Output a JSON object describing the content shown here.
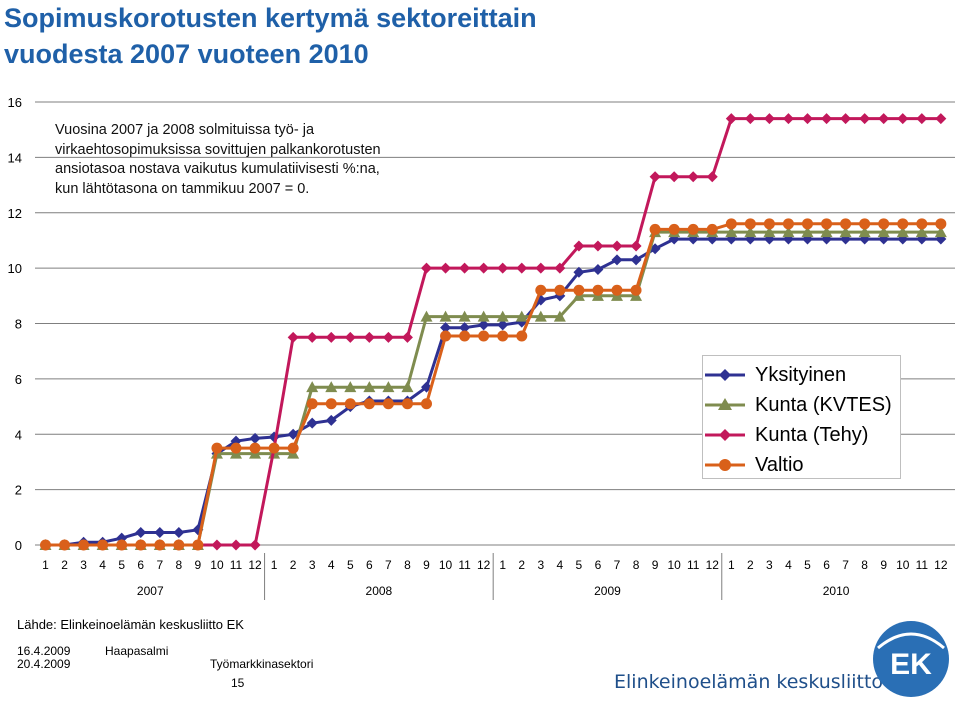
{
  "title_line1": "Sopimuskorotusten kertymä sektoreittain",
  "title_line2": "vuodesta 2007 vuoteen 2010",
  "annotation": [
    "Vuosina 2007 ja 2008 solmituissa työ- ja",
    "virkaehtosopimuksissa sovittujen palkankorotusten",
    "ansiotasoa nostava vaikutus kumulatiivisesti %:na,",
    "kun lähtötasona on tammikuu 2007 = 0."
  ],
  "source": "Lähde: Elinkeinoelämän keskusliitto EK",
  "footer": {
    "date1": "16.4.2009",
    "date2": "20.4.2009",
    "author": "Haapasalmi",
    "unit": "Työmarkkinasektori",
    "page": "15"
  },
  "org_name": "Elinkeinoelämän keskusliitto",
  "logo_text": "EK",
  "colors": {
    "title": "#1f60a8",
    "yksityinen": "#2e3192",
    "kunta_kvtes": "#7f8c4f",
    "kunta_tehy": "#c2185b",
    "valtio": "#d9601a",
    "logo": "#2a6fb5"
  },
  "chart_data": {
    "type": "line",
    "ylim": [
      0,
      16
    ],
    "yticks": [
      0,
      2,
      4,
      6,
      8,
      10,
      12,
      14,
      16
    ],
    "x_month_labels": [
      "1",
      "2",
      "3",
      "4",
      "5",
      "6",
      "7",
      "8",
      "9",
      "10",
      "11",
      "12",
      "1",
      "2",
      "3",
      "4",
      "5",
      "6",
      "7",
      "8",
      "9",
      "10",
      "11",
      "12",
      "1",
      "2",
      "3",
      "4",
      "5",
      "6",
      "7",
      "8",
      "9",
      "10",
      "11",
      "12",
      "1",
      "2",
      "3",
      "4",
      "5",
      "6",
      "7",
      "8",
      "9",
      "10",
      "11",
      "12"
    ],
    "year_labels": [
      "2007",
      "2008",
      "2009",
      "2010"
    ],
    "grid": "horizontal",
    "legend_position": "right",
    "series": [
      {
        "name": "Yksityinen",
        "marker": "diamond",
        "values": [
          0,
          0,
          0.1,
          0.1,
          0.25,
          0.45,
          0.45,
          0.45,
          0.55,
          3.3,
          3.75,
          3.85,
          3.9,
          4.0,
          4.4,
          4.5,
          5.0,
          5.2,
          5.2,
          5.2,
          5.7,
          7.85,
          7.85,
          7.95,
          7.95,
          8.05,
          8.85,
          9.0,
          9.85,
          9.95,
          10.3,
          10.3,
          10.7,
          11.05,
          11.05,
          11.05,
          11.05,
          11.05,
          11.05,
          11.05,
          11.05,
          11.05,
          11.05,
          11.05,
          11.05,
          11.05,
          11.05,
          11.05
        ]
      },
      {
        "name": "Kunta (KVTES)",
        "marker": "triangle",
        "values": [
          0,
          0,
          0,
          0,
          0,
          0,
          0,
          0,
          0,
          3.3,
          3.3,
          3.3,
          3.3,
          3.3,
          5.7,
          5.7,
          5.7,
          5.7,
          5.7,
          5.7,
          8.25,
          8.25,
          8.25,
          8.25,
          8.25,
          8.25,
          8.25,
          8.25,
          9.0,
          9.0,
          9.0,
          9.0,
          11.3,
          11.3,
          11.3,
          11.3,
          11.3,
          11.3,
          11.3,
          11.3,
          11.3,
          11.3,
          11.3,
          11.3,
          11.3,
          11.3,
          11.3,
          11.3
        ]
      },
      {
        "name": "Kunta (Tehy)",
        "marker": "diamond",
        "values": [
          0,
          0,
          0,
          0,
          0,
          0,
          0,
          0,
          0,
          0,
          0,
          0,
          3.5,
          7.5,
          7.5,
          7.5,
          7.5,
          7.5,
          7.5,
          7.5,
          10.0,
          10.0,
          10.0,
          10.0,
          10.0,
          10.0,
          10.0,
          10.0,
          10.8,
          10.8,
          10.8,
          10.8,
          13.3,
          13.3,
          13.3,
          13.3,
          15.4,
          15.4,
          15.4,
          15.4,
          15.4,
          15.4,
          15.4,
          15.4,
          15.4,
          15.4,
          15.4,
          15.4
        ]
      },
      {
        "name": "Valtio",
        "marker": "circle",
        "values": [
          0,
          0,
          0,
          0,
          0,
          0,
          0,
          0,
          0,
          3.5,
          3.5,
          3.5,
          3.5,
          3.5,
          5.1,
          5.1,
          5.1,
          5.1,
          5.1,
          5.1,
          5.1,
          7.55,
          7.55,
          7.55,
          7.55,
          7.55,
          9.2,
          9.2,
          9.2,
          9.2,
          9.2,
          9.2,
          11.4,
          11.4,
          11.4,
          11.4,
          11.6,
          11.6,
          11.6,
          11.6,
          11.6,
          11.6,
          11.6,
          11.6,
          11.6,
          11.6,
          11.6,
          11.6
        ]
      }
    ]
  }
}
